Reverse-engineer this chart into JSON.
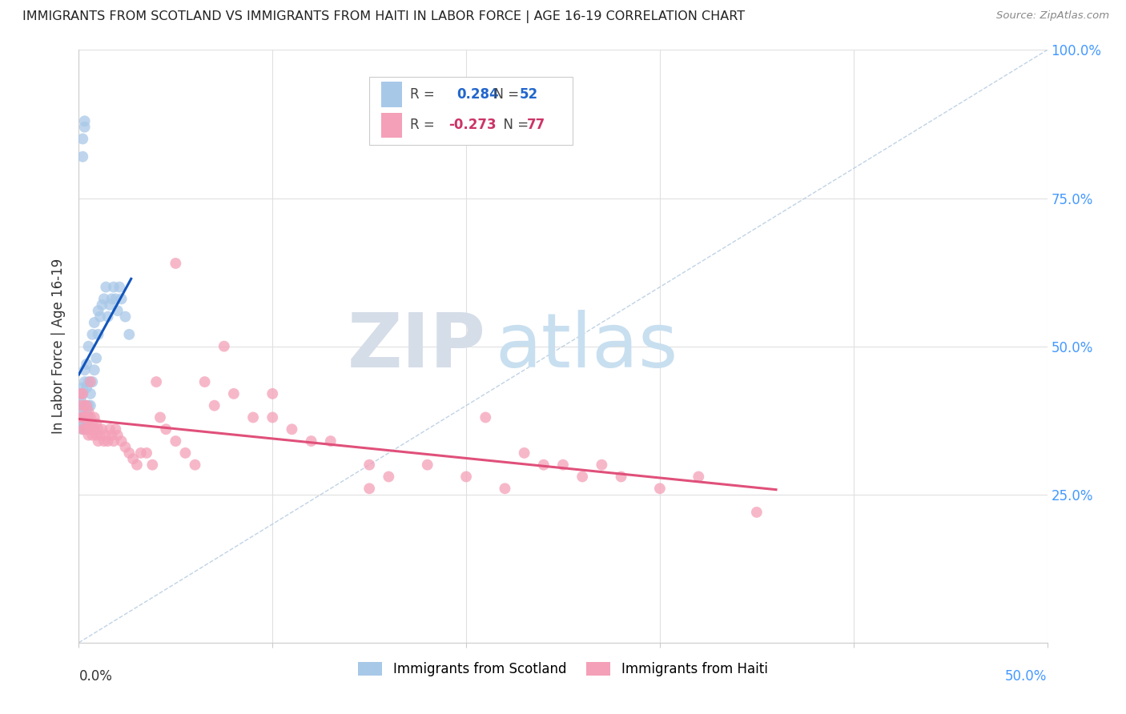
{
  "title": "IMMIGRANTS FROM SCOTLAND VS IMMIGRANTS FROM HAITI IN LABOR FORCE | AGE 16-19 CORRELATION CHART",
  "source": "Source: ZipAtlas.com",
  "ylabel_label": "In Labor Force | Age 16-19",
  "x_min": 0.0,
  "x_max": 0.5,
  "y_min": 0.0,
  "y_max": 1.0,
  "scotland_color": "#a8c8e8",
  "scotland_line_color": "#1155bb",
  "haiti_color": "#f4a0b8",
  "haiti_line_color": "#e0507a",
  "ref_line_color": "#b0c8e0",
  "scotland_R": 0.284,
  "scotland_N": 52,
  "haiti_R": -0.273,
  "haiti_N": 77,
  "legend_scotland_label": "Immigrants from Scotland",
  "legend_haiti_label": "Immigrants from Haiti",
  "watermark_zip": "ZIP",
  "watermark_atlas": "atlas",
  "background_color": "#ffffff",
  "grid_color": "#e0e0e0",
  "scotland_x": [
    0.001,
    0.001,
    0.001,
    0.001,
    0.001,
    0.001,
    0.002,
    0.002,
    0.002,
    0.002,
    0.002,
    0.002,
    0.003,
    0.003,
    0.003,
    0.003,
    0.003,
    0.004,
    0.004,
    0.004,
    0.004,
    0.005,
    0.005,
    0.005,
    0.005,
    0.006,
    0.006,
    0.007,
    0.007,
    0.008,
    0.008,
    0.009,
    0.01,
    0.01,
    0.011,
    0.012,
    0.013,
    0.014,
    0.015,
    0.016,
    0.017,
    0.018,
    0.019,
    0.02,
    0.021,
    0.022,
    0.024,
    0.026,
    0.002,
    0.002,
    0.003,
    0.003
  ],
  "scotland_y": [
    0.37,
    0.38,
    0.39,
    0.4,
    0.41,
    0.42,
    0.36,
    0.37,
    0.38,
    0.4,
    0.42,
    0.43,
    0.36,
    0.38,
    0.4,
    0.44,
    0.46,
    0.37,
    0.39,
    0.43,
    0.47,
    0.38,
    0.4,
    0.44,
    0.5,
    0.4,
    0.42,
    0.44,
    0.52,
    0.46,
    0.54,
    0.48,
    0.52,
    0.56,
    0.55,
    0.57,
    0.58,
    0.6,
    0.55,
    0.57,
    0.58,
    0.6,
    0.58,
    0.56,
    0.6,
    0.58,
    0.55,
    0.52,
    0.82,
    0.85,
    0.87,
    0.88
  ],
  "haiti_x": [
    0.001,
    0.001,
    0.001,
    0.002,
    0.002,
    0.002,
    0.003,
    0.003,
    0.003,
    0.004,
    0.004,
    0.004,
    0.005,
    0.005,
    0.005,
    0.006,
    0.006,
    0.006,
    0.007,
    0.007,
    0.008,
    0.008,
    0.009,
    0.009,
    0.01,
    0.01,
    0.011,
    0.012,
    0.013,
    0.014,
    0.015,
    0.016,
    0.017,
    0.018,
    0.019,
    0.02,
    0.022,
    0.024,
    0.026,
    0.028,
    0.03,
    0.032,
    0.035,
    0.038,
    0.04,
    0.042,
    0.045,
    0.05,
    0.055,
    0.06,
    0.065,
    0.07,
    0.08,
    0.09,
    0.1,
    0.11,
    0.12,
    0.13,
    0.15,
    0.16,
    0.18,
    0.2,
    0.21,
    0.23,
    0.24,
    0.25,
    0.26,
    0.27,
    0.28,
    0.3,
    0.32,
    0.05,
    0.075,
    0.1,
    0.15,
    0.35,
    0.22
  ],
  "haiti_y": [
    0.38,
    0.4,
    0.42,
    0.36,
    0.38,
    0.42,
    0.36,
    0.38,
    0.4,
    0.36,
    0.38,
    0.4,
    0.35,
    0.37,
    0.39,
    0.36,
    0.38,
    0.44,
    0.35,
    0.37,
    0.36,
    0.38,
    0.35,
    0.37,
    0.34,
    0.36,
    0.35,
    0.36,
    0.34,
    0.35,
    0.34,
    0.36,
    0.35,
    0.34,
    0.36,
    0.35,
    0.34,
    0.33,
    0.32,
    0.31,
    0.3,
    0.32,
    0.32,
    0.3,
    0.44,
    0.38,
    0.36,
    0.34,
    0.32,
    0.3,
    0.44,
    0.4,
    0.42,
    0.38,
    0.38,
    0.36,
    0.34,
    0.34,
    0.3,
    0.28,
    0.3,
    0.28,
    0.38,
    0.32,
    0.3,
    0.3,
    0.28,
    0.3,
    0.28,
    0.26,
    0.28,
    0.64,
    0.5,
    0.42,
    0.26,
    0.22,
    0.26
  ]
}
